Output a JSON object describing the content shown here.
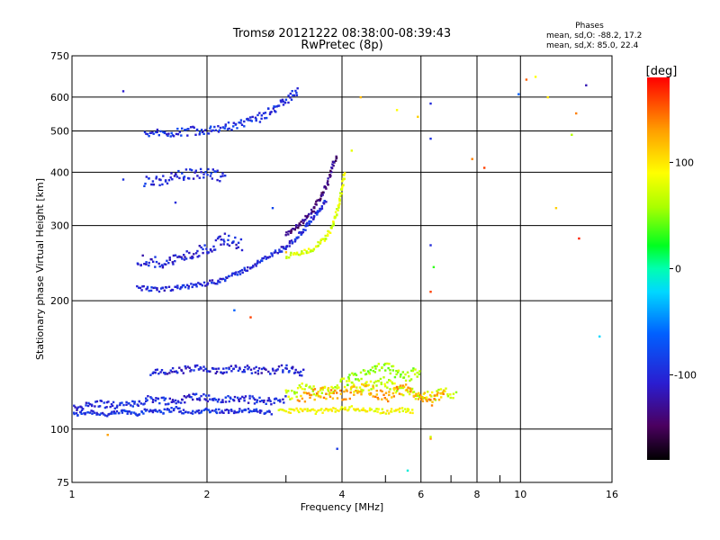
{
  "header": {
    "title_line1": "Tromsø 20121222 08:38:00-08:39:43",
    "title_line2": "RwPretec (8p)",
    "stats_title": "Phases",
    "stats_o": "mean, sd,O: -88.2, 17.2",
    "stats_x": "mean, sd,X: 85.0, 22.4"
  },
  "colorbar": {
    "label": "[deg]",
    "range": [
      -180,
      180
    ],
    "ticks": [
      100,
      0,
      -100
    ],
    "tick_labels": [
      "100",
      "0",
      "-100"
    ]
  },
  "chart_data": {
    "type": "scatter",
    "title": "Tromsø 20121222 08:38:00-08:39:43",
    "subtitle": "RwPretec (8p)",
    "xlabel": "Frequency [MHz]",
    "ylabel": "Stationary phase Virtual Height [km]",
    "x_scale": "log",
    "y_scale": "log",
    "xlim": [
      1,
      16
    ],
    "ylim": [
      75,
      750
    ],
    "x_ticks": [
      1,
      2,
      4,
      6,
      8,
      10,
      16
    ],
    "x_tick_labels": [
      "1",
      "2",
      "4",
      "6",
      "8",
      "10",
      "16"
    ],
    "x_minor_ticks": [
      3,
      5,
      7,
      9
    ],
    "y_ticks": [
      75,
      100,
      200,
      300,
      400,
      500,
      600,
      750
    ],
    "y_tick_labels": [
      "75",
      "100",
      "200",
      "300",
      "400",
      "500",
      "600",
      "750"
    ],
    "grid": true,
    "color_scale": "phase [deg], -180 (black) .. 180 (red)",
    "traces": [
      {
        "name": "",
        "phase": -95,
        "spread": 0.012,
        "points": [
          [
            1.0,
            108
          ],
          [
            1.1,
            110
          ],
          [
            1.2,
            108
          ],
          [
            1.3,
            110
          ],
          [
            1.4,
            109
          ],
          [
            1.5,
            111
          ],
          [
            1.6,
            110
          ],
          [
            1.7,
            112
          ],
          [
            1.8,
            109
          ],
          [
            1.9,
            110
          ],
          [
            2.0,
            111
          ],
          [
            2.2,
            110
          ],
          [
            2.4,
            111
          ],
          [
            2.6,
            110
          ],
          [
            2.8,
            109
          ]
        ]
      },
      {
        "name": "",
        "phase": -100,
        "spread": 0.02,
        "points": [
          [
            1.0,
            112
          ],
          [
            1.15,
            115
          ],
          [
            1.3,
            113
          ],
          [
            1.5,
            118
          ],
          [
            1.7,
            116
          ],
          [
            1.9,
            120
          ],
          [
            2.1,
            117
          ],
          [
            2.4,
            118
          ],
          [
            2.7,
            116
          ],
          [
            3.0,
            118
          ]
        ]
      },
      {
        "name": "",
        "phase": -105,
        "spread": 0.02,
        "points": [
          [
            1.5,
            135
          ],
          [
            1.7,
            137
          ],
          [
            1.9,
            139
          ],
          [
            2.1,
            136
          ],
          [
            2.3,
            140
          ],
          [
            2.5,
            138
          ],
          [
            2.7,
            137
          ],
          [
            3.0,
            139
          ],
          [
            3.3,
            135
          ]
        ]
      },
      {
        "name": "",
        "phase": 90,
        "spread": 0.012,
        "points": [
          [
            2.9,
            110
          ],
          [
            3.2,
            111
          ],
          [
            3.5,
            110
          ],
          [
            3.8,
            111
          ],
          [
            4.2,
            112
          ],
          [
            4.6,
            111
          ],
          [
            5.0,
            110
          ],
          [
            5.4,
            111
          ],
          [
            5.8,
            110
          ]
        ]
      },
      {
        "name": "",
        "phase": 70,
        "spread": 0.03,
        "points": [
          [
            3.0,
            120
          ],
          [
            3.3,
            125
          ],
          [
            3.7,
            122
          ],
          [
            4.0,
            128
          ],
          [
            4.4,
            124
          ],
          [
            4.8,
            130
          ],
          [
            5.2,
            126
          ],
          [
            5.6,
            122
          ],
          [
            6.4,
            120
          ],
          [
            7.2,
            122
          ]
        ]
      },
      {
        "name": "",
        "phase": 125,
        "spread": 0.03,
        "points": [
          [
            3.2,
            118
          ],
          [
            3.6,
            122
          ],
          [
            4.0,
            120
          ],
          [
            4.5,
            125
          ],
          [
            5.0,
            119
          ],
          [
            5.5,
            124
          ],
          [
            6.3,
            117
          ],
          [
            6.8,
            120
          ]
        ]
      },
      {
        "name": "",
        "phase": 55,
        "spread": 0.03,
        "points": [
          [
            4.1,
            130
          ],
          [
            4.5,
            135
          ],
          [
            5.0,
            140
          ],
          [
            5.5,
            132
          ],
          [
            6.0,
            138
          ]
        ]
      },
      {
        "name": "",
        "phase": -100,
        "spread": 0.012,
        "points": [
          [
            1.4,
            215
          ],
          [
            1.55,
            212
          ],
          [
            1.7,
            214
          ],
          [
            1.9,
            218
          ],
          [
            2.1,
            222
          ],
          [
            2.3,
            230
          ],
          [
            2.5,
            240
          ],
          [
            2.7,
            252
          ],
          [
            2.9,
            262
          ],
          [
            3.1,
            275
          ],
          [
            3.3,
            295
          ],
          [
            3.5,
            320
          ],
          [
            3.7,
            345
          ]
        ]
      },
      {
        "name": "",
        "phase": -140,
        "spread": 0.012,
        "points": [
          [
            3.0,
            285
          ],
          [
            3.2,
            300
          ],
          [
            3.4,
            320
          ],
          [
            3.55,
            345
          ],
          [
            3.7,
            375
          ],
          [
            3.8,
            410
          ],
          [
            3.9,
            440
          ]
        ]
      },
      {
        "name": "",
        "phase": 75,
        "spread": 0.012,
        "points": [
          [
            3.0,
            255
          ],
          [
            3.2,
            258
          ],
          [
            3.4,
            262
          ],
          [
            3.6,
            275
          ],
          [
            3.75,
            290
          ],
          [
            3.85,
            310
          ],
          [
            3.95,
            340
          ],
          [
            4.0,
            370
          ],
          [
            4.05,
            405
          ]
        ]
      },
      {
        "name": "",
        "phase": -105,
        "spread": 0.03,
        "points": [
          [
            1.4,
            250
          ],
          [
            1.6,
            245
          ],
          [
            1.8,
            255
          ],
          [
            2.0,
            265
          ],
          [
            2.2,
            280
          ],
          [
            2.4,
            270
          ]
        ]
      },
      {
        "name": "",
        "phase": -95,
        "spread": 0.025,
        "points": [
          [
            1.45,
            490
          ],
          [
            1.6,
            495
          ],
          [
            1.8,
            500
          ],
          [
            2.0,
            505
          ],
          [
            2.15,
            510
          ],
          [
            2.4,
            520
          ],
          [
            2.6,
            535
          ],
          [
            2.8,
            560
          ],
          [
            3.0,
            590
          ],
          [
            3.2,
            625
          ]
        ]
      },
      {
        "name": "",
        "phase": -100,
        "spread": 0.03,
        "points": [
          [
            1.45,
            380
          ],
          [
            1.6,
            385
          ],
          [
            1.8,
            395
          ],
          [
            2.0,
            400
          ],
          [
            2.2,
            390
          ]
        ]
      }
    ],
    "scatter_points": [
      [
        1.3,
        620,
        -110
      ],
      [
        2.3,
        190,
        -60
      ],
      [
        4.4,
        600,
        120
      ],
      [
        4.2,
        450,
        80
      ],
      [
        5.3,
        560,
        90
      ],
      [
        5.9,
        540,
        110
      ],
      [
        6.3,
        580,
        -100
      ],
      [
        6.3,
        480,
        -95
      ],
      [
        6.3,
        270,
        -100
      ],
      [
        6.4,
        240,
        30
      ],
      [
        6.3,
        210,
        160
      ],
      [
        6.3,
        95,
        130
      ],
      [
        7.8,
        430,
        140
      ],
      [
        8.3,
        410,
        160
      ],
      [
        9.9,
        610,
        -60
      ],
      [
        10.3,
        660,
        150
      ],
      [
        10.8,
        670,
        90
      ],
      [
        11.5,
        600,
        100
      ],
      [
        13.0,
        490,
        60
      ],
      [
        13.3,
        550,
        140
      ],
      [
        14.0,
        640,
        -120
      ],
      [
        15.0,
        165,
        -20
      ],
      [
        13.5,
        280,
        170
      ],
      [
        12.0,
        330,
        110
      ],
      [
        3.9,
        90,
        -90
      ],
      [
        5.6,
        80,
        -10
      ],
      [
        6.3,
        96,
        70
      ],
      [
        1.2,
        97,
        130
      ],
      [
        2.5,
        183,
        160
      ],
      [
        3.0,
        260,
        120
      ],
      [
        1.3,
        385,
        -95
      ],
      [
        1.7,
        340,
        -100
      ],
      [
        2.8,
        330,
        -80
      ]
    ]
  }
}
